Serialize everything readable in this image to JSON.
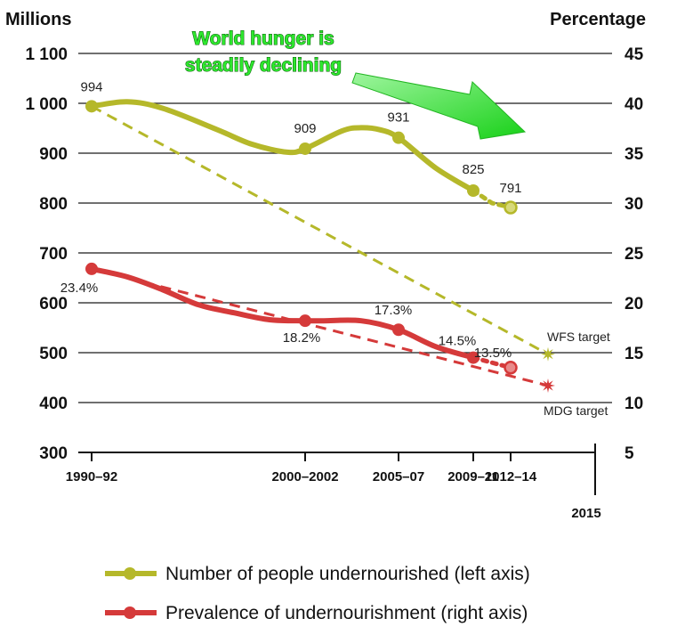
{
  "chart_data": {
    "type": "line",
    "left_axis": {
      "title": "Millions",
      "range": [
        300,
        1100
      ],
      "ticks": [
        300,
        400,
        500,
        600,
        700,
        800,
        900,
        1000,
        1100
      ],
      "tick_labels": [
        "300",
        "400",
        "500",
        "600",
        "700",
        "800",
        "900",
        "1 000",
        "1 100"
      ]
    },
    "right_axis": {
      "title": "Percentage",
      "range": [
        5,
        45
      ],
      "ticks": [
        5,
        10,
        15,
        20,
        25,
        30,
        35,
        40,
        45
      ],
      "tick_labels": [
        "5",
        "10",
        "15",
        "20",
        "25",
        "30",
        "35",
        "40",
        "45"
      ]
    },
    "x_categories": [
      "1990–92",
      "2000–2002",
      "2005–07",
      "2009–11",
      "2012–14"
    ],
    "x_extra": "2015",
    "annotation": {
      "line1": "World hunger is",
      "line2": "steadily declining",
      "color": "#2ee82e"
    },
    "series": [
      {
        "name": "Number of people undernourished (left axis)",
        "axis": "left",
        "color": "#b5b82a",
        "curve": [
          [
            1990,
            994
          ],
          [
            1992,
            1003
          ],
          [
            1994,
            990
          ],
          [
            1997,
            948
          ],
          [
            1999,
            918
          ],
          [
            2001,
            902
          ],
          [
            2002,
            909
          ],
          [
            2004,
            945
          ],
          [
            2005,
            951
          ],
          [
            2006,
            947
          ],
          [
            2007,
            931
          ],
          [
            2009,
            870
          ],
          [
            2011,
            825
          ]
        ],
        "projection": [
          [
            2011,
            825
          ],
          [
            2012,
            800
          ],
          [
            2013,
            791
          ]
        ],
        "markers": [
          [
            1990,
            994
          ],
          [
            2002,
            909
          ],
          [
            2007,
            931
          ],
          [
            2011,
            825
          ],
          [
            2013,
            791
          ]
        ],
        "labels": [
          {
            "x": 1990,
            "y": 994,
            "text": "994"
          },
          {
            "x": 2002,
            "y": 909,
            "text": "909"
          },
          {
            "x": 2007,
            "y": 931,
            "text": "931"
          },
          {
            "x": 2011,
            "y": 825,
            "text": "825"
          },
          {
            "x": 2013,
            "y": 791,
            "text": "791"
          }
        ]
      },
      {
        "name": "Prevalence of undernourishment (right axis)",
        "axis": "right",
        "color": "#d53a3a",
        "curve": [
          [
            1990,
            23.4
          ],
          [
            1992,
            22.6
          ],
          [
            1994,
            21.3
          ],
          [
            1996,
            19.8
          ],
          [
            1998,
            19.0
          ],
          [
            2000,
            18.3
          ],
          [
            2002,
            18.2
          ],
          [
            2003,
            18.2
          ],
          [
            2005,
            18.2
          ],
          [
            2007,
            17.3
          ],
          [
            2009,
            15.6
          ],
          [
            2011,
            14.5
          ]
        ],
        "projection": [
          [
            2011,
            14.5
          ],
          [
            2013,
            13.5
          ]
        ],
        "markers": [
          [
            1990,
            23.4
          ],
          [
            2002,
            18.2
          ],
          [
            2007,
            17.3
          ],
          [
            2011,
            14.5
          ],
          [
            2013,
            13.5
          ]
        ],
        "labels": [
          {
            "x": 1990,
            "y": 23.4,
            "text": "23.4%"
          },
          {
            "x": 2002,
            "y": 18.2,
            "text": "18.2%"
          },
          {
            "x": 2007,
            "y": 17.3,
            "text": "17.3%"
          },
          {
            "x": 2011,
            "y": 14.5,
            "text": "14.5%"
          },
          {
            "x": 2013,
            "y": 13.5,
            "text": "13.5%"
          }
        ]
      }
    ],
    "targets": [
      {
        "name": "WFS target",
        "axis": "left",
        "start": [
          1990,
          994
        ],
        "end": [
          2015,
          497
        ],
        "color": "#b5b82a"
      },
      {
        "name": "MDG target",
        "axis": "right",
        "start": [
          1990,
          23.4
        ],
        "end": [
          2015,
          11.7
        ],
        "color": "#d53a3a"
      }
    ]
  }
}
